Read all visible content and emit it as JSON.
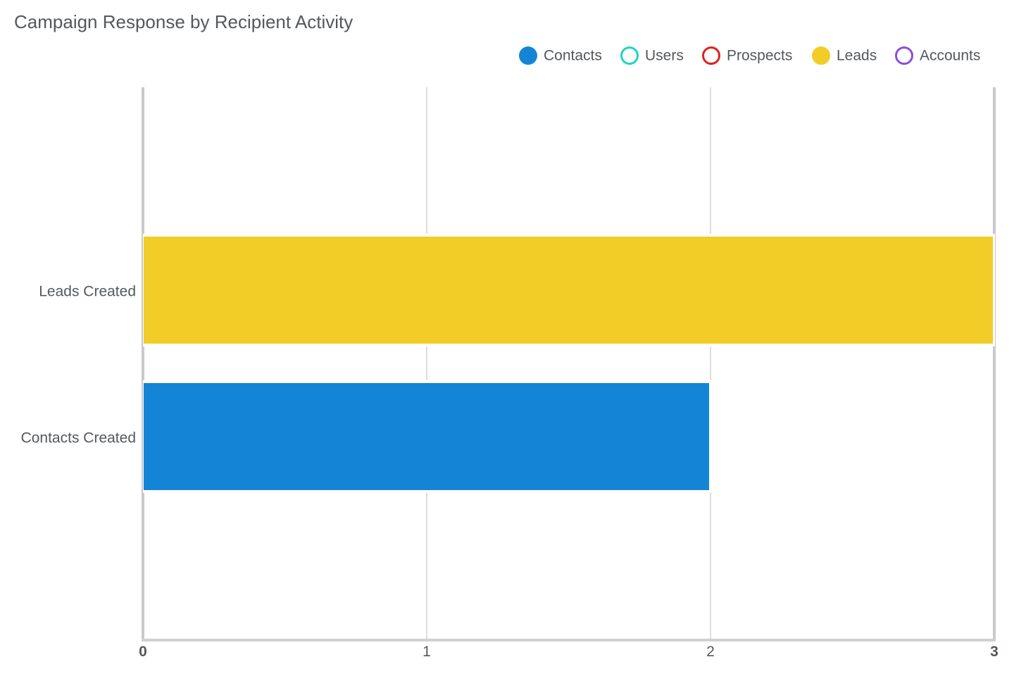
{
  "chart_data": {
    "type": "bar",
    "orientation": "horizontal",
    "title": "Campaign Response by Recipient Activity",
    "xlabel": "",
    "ylabel": "",
    "xlim": [
      0,
      3
    ],
    "x_ticks": [
      "0",
      "1",
      "2",
      "3"
    ],
    "categories": [
      "Leads Created",
      "Contacts Created"
    ],
    "bars": [
      {
        "category": "Leads Created",
        "series": "Leads",
        "value": 3
      },
      {
        "category": "Contacts Created",
        "series": "Contacts",
        "value": 2
      }
    ],
    "legend": {
      "placement": "top-right",
      "entries": [
        {
          "name": "Contacts",
          "color": "#1485d6",
          "filled": true
        },
        {
          "name": "Users",
          "color": "#1fd5c2",
          "filled": false
        },
        {
          "name": "Prospects",
          "color": "#e01f1f",
          "filled": false
        },
        {
          "name": "Leads",
          "color": "#f2cc27",
          "filled": true
        },
        {
          "name": "Accounts",
          "color": "#8a4fd8",
          "filled": false
        }
      ]
    },
    "grid": true
  }
}
